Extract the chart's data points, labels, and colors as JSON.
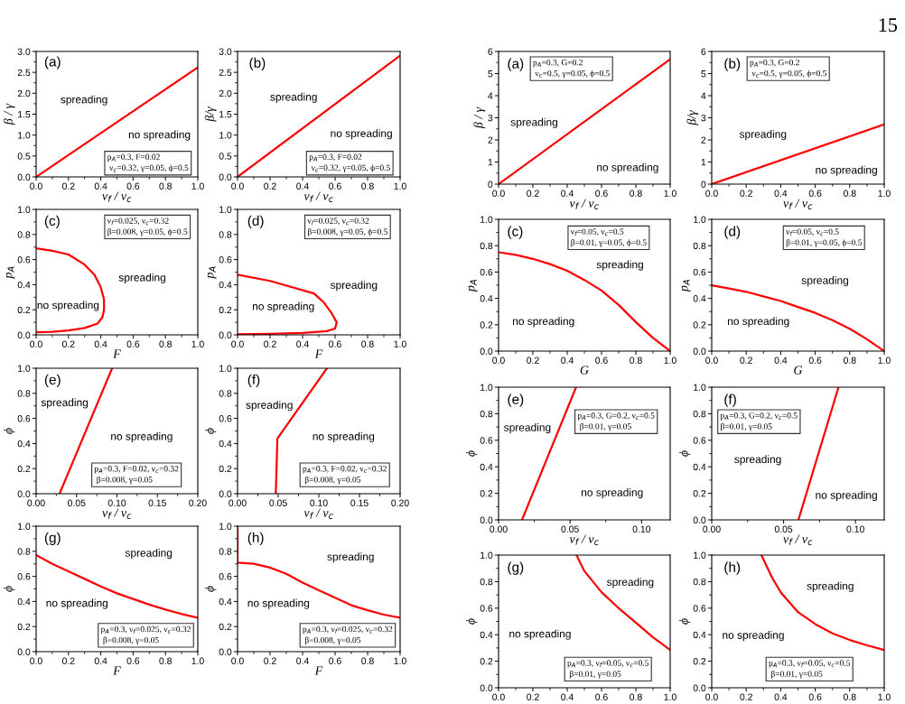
{
  "chart_data": [
    {
      "type": "line",
      "xlabel": "ν$_{f}$ / ν$_{c}$",
      "ylabel": "β / γ",
      "xlim": [
        0,
        1
      ],
      "ylim": [
        0,
        3
      ],
      "xticks": [
        {
          "value": 0,
          "label": "0.0"
        },
        0.2,
        0.4,
        0.6,
        0.8,
        {
          "value": 1,
          "label": "1.0"
        }
      ],
      "yticks": [
        {
          "value": 0,
          "label": "0.0"
        },
        0.5,
        {
          "value": 1,
          "label": "1.0"
        },
        1.5,
        {
          "value": 2,
          "label": "2.0"
        },
        2.5,
        {
          "value": 3,
          "label": "3.0"
        }
      ],
      "series": [
        {
          "color": "#ff0000",
          "x": [
            0,
            1
          ],
          "values": [
            0,
            2.62
          ]
        }
      ],
      "annotations": [
        "(a)",
        "spreading",
        "no spreading",
        "p$_{A}$=0.3, F=0.02\n ν$_{c}$=0.32, γ=0.05, ϕ=0.5"
      ]
    },
    {
      "type": "line",
      "xlabel": "ν$_{f}$ / ν$_{c}$",
      "ylabel": "β/γ",
      "xlim": [
        0,
        1
      ],
      "ylim": [
        0,
        3
      ],
      "xticks": [
        {
          "value": 0,
          "label": "0.0"
        },
        0.2,
        0.4,
        0.6,
        0.8,
        {
          "value": 1,
          "label": "1.0"
        }
      ],
      "yticks": [
        {
          "value": 0,
          "label": "0.0"
        },
        0.5,
        {
          "value": 1,
          "label": "1.0"
        },
        1.5,
        {
          "value": 2,
          "label": "2.0"
        },
        2.5,
        {
          "value": 3,
          "label": "3.0"
        }
      ],
      "series": [
        {
          "color": "#ff0000",
          "x": [
            0,
            1
          ],
          "values": [
            0,
            2.9
          ]
        }
      ],
      "annotations": [
        "(b)",
        "spreading",
        "no spreading",
        "p$_{A}$=0.3, F=0.02\n ν$_{c}$=0.32, γ=0.05, ϕ=0.5"
      ]
    },
    {
      "type": "line",
      "xlabel": "F",
      "ylabel": "p$_{A}$",
      "xlim": [
        0,
        1
      ],
      "ylim": [
        0,
        1
      ],
      "xticks": [
        {
          "value": 0,
          "label": "0.0"
        },
        0.2,
        0.4,
        0.6,
        0.8,
        {
          "value": 1,
          "label": "1.0"
        }
      ],
      "yticks": [
        {
          "value": 0,
          "label": "0.0"
        },
        0.2,
        0.4,
        0.6,
        0.8,
        {
          "value": 1,
          "label": "1.0"
        }
      ],
      "series": [
        {
          "color": "#ff0000",
          "x": [
            0,
            0.1,
            0.2,
            0.3,
            0.36,
            0.4,
            0.42,
            0.42,
            0.41,
            0.38,
            0.3,
            0.2,
            0.1,
            0
          ],
          "values": [
            0.69,
            0.67,
            0.64,
            0.56,
            0.48,
            0.38,
            0.28,
            0.2,
            0.14,
            0.09,
            0.055,
            0.035,
            0.025,
            0.02
          ]
        }
      ],
      "annotations": [
        "(c)",
        "spreading",
        "no spreading",
        "ν$_{f}$=0.025, ν$_{c}$=0.32\nβ=0.008, γ=0.05, ϕ=0.5"
      ]
    },
    {
      "type": "line",
      "xlabel": "F",
      "ylabel": "p$_{A}$",
      "xlim": [
        0,
        1
      ],
      "ylim": [
        0,
        1
      ],
      "xticks": [
        {
          "value": 0,
          "label": "0.0"
        },
        0.2,
        0.4,
        0.6,
        0.8,
        {
          "value": 1,
          "label": "1.0"
        }
      ],
      "yticks": [
        {
          "value": 0,
          "label": "0.0"
        },
        0.2,
        0.4,
        0.6,
        0.8,
        {
          "value": 1,
          "label": "1.0"
        }
      ],
      "series": [
        {
          "color": "#ff0000",
          "x": [
            0,
            0.2,
            0.47,
            0.53,
            0.58,
            0.61,
            0.6,
            0.55,
            0.4,
            0.2,
            0
          ],
          "values": [
            0.48,
            0.43,
            0.33,
            0.26,
            0.17,
            0.1,
            0.05,
            0.03,
            0.015,
            0.008,
            0.005
          ]
        }
      ],
      "annotations": [
        "(d)",
        "spreading",
        "no spreading",
        "ν$_{f}$=0.025, ν$_{c}$=0.32\nβ=0.008, γ=0.05, ϕ=0.5"
      ]
    },
    {
      "type": "line",
      "xlabel": "ν$_{f}$ / ν$_{c}$",
      "ylabel": "ϕ",
      "xlim": [
        0,
        0.2
      ],
      "ylim": [
        0,
        1
      ],
      "xticks": [
        {
          "value": 0,
          "label": "0.00"
        },
        0.05,
        {
          "value": 0.1,
          "label": "0.10"
        },
        0.15,
        {
          "value": 0.2,
          "label": "0.20"
        }
      ],
      "yticks": [
        {
          "value": 0,
          "label": "0.0"
        },
        0.2,
        0.4,
        0.6,
        0.8,
        {
          "value": 1,
          "label": "1.0"
        }
      ],
      "series": [
        {
          "color": "#ff0000",
          "x": [
            0.029,
            0.094
          ],
          "values": [
            0,
            1
          ]
        }
      ],
      "annotations": [
        "(e)",
        "spreading",
        "no spreading",
        "p$_{A}$=0.3, F=0.02, ν$_{c}$=0.32\n β=0.008, γ=0.05"
      ]
    },
    {
      "type": "line",
      "xlabel": "ν$_{f}$ / ν$_{c}$",
      "ylabel": "ϕ",
      "xlim": [
        0,
        0.2
      ],
      "ylim": [
        0,
        1
      ],
      "xticks": [
        {
          "value": 0,
          "label": "0.00"
        },
        0.05,
        {
          "value": 0.1,
          "label": "0.10"
        },
        0.15,
        {
          "value": 0.2,
          "label": "0.20"
        }
      ],
      "yticks": [
        {
          "value": 0,
          "label": "0.0"
        },
        0.2,
        0.4,
        0.6,
        0.8,
        {
          "value": 1,
          "label": "1.0"
        }
      ],
      "series": [
        {
          "color": "#ff0000",
          "x": [
            0.047,
            0.048,
            0.049,
            0.11
          ],
          "values": [
            0,
            0.2,
            0.44,
            1
          ]
        }
      ],
      "annotations": [
        "(f)",
        "spreading",
        "no spreading",
        "p$_{A}$=0.3, F=0.02, ν$_{c}$=0.32\n β=0.008, γ=0.05"
      ]
    },
    {
      "type": "line",
      "xlabel": "F",
      "ylabel": "ϕ",
      "xlim": [
        0,
        1
      ],
      "ylim": [
        0,
        1
      ],
      "xticks": [
        {
          "value": 0,
          "label": "0.0"
        },
        0.2,
        0.4,
        0.6,
        0.8,
        {
          "value": 1,
          "label": "1.0"
        }
      ],
      "yticks": [
        {
          "value": 0,
          "label": "0.0"
        },
        0.2,
        0.4,
        0.6,
        0.8,
        {
          "value": 1,
          "label": "1.0"
        }
      ],
      "series": [
        {
          "color": "#ff0000",
          "x": [
            0,
            0.1,
            0.2,
            0.3,
            0.4,
            0.5,
            0.6,
            0.7,
            0.8,
            0.9,
            1
          ],
          "values": [
            0.77,
            0.7,
            0.64,
            0.58,
            0.52,
            0.465,
            0.42,
            0.375,
            0.335,
            0.3,
            0.27
          ]
        }
      ],
      "annotations": [
        "(g)",
        "spreading",
        "no spreading",
        "p$_{A}$=0.3, ν$_{f}$=0.025, ν$_{c}$=0.32\n β=0.008, γ=0.05"
      ]
    },
    {
      "type": "line",
      "xlabel": "F",
      "ylabel": "ϕ",
      "xlim": [
        0,
        1
      ],
      "ylim": [
        0,
        1
      ],
      "xticks": [
        {
          "value": 0,
          "label": "0.0"
        },
        0.2,
        0.4,
        0.6,
        0.8,
        {
          "value": 1,
          "label": "1.0"
        }
      ],
      "yticks": [
        {
          "value": 0,
          "label": "0.0"
        },
        0.2,
        0.4,
        0.6,
        0.8,
        {
          "value": 1,
          "label": "1.0"
        }
      ],
      "series": [
        {
          "color": "#ff0000",
          "x": [
            0,
            0,
            0.1,
            0.2,
            0.3,
            0.4,
            0.5,
            0.6,
            0.7,
            0.8,
            0.9,
            1
          ],
          "values": [
            1,
            0.71,
            0.7,
            0.67,
            0.62,
            0.55,
            0.49,
            0.43,
            0.37,
            0.33,
            0.295,
            0.27
          ]
        }
      ],
      "annotations": [
        "(h)",
        "spreading",
        "no spreading",
        "p$_{A}$=0.3, ν$_{f}$=0.025, ν$_{c}$=0.32\n β=0.008, γ=0.05"
      ]
    },
    {
      "type": "line",
      "xlabel": "ν$_{f}$ / ν$_{c}$",
      "ylabel": "β / γ",
      "xlim": [
        0,
        1
      ],
      "ylim": [
        0,
        6
      ],
      "xticks": [
        {
          "value": 0,
          "label": "0.0"
        },
        0.2,
        0.4,
        0.6,
        0.8,
        {
          "value": 1,
          "label": "1.0"
        }
      ],
      "yticks": [
        0,
        1,
        2,
        3,
        4,
        5,
        6
      ],
      "series": [
        {
          "color": "#ff0000",
          "x": [
            0,
            1
          ],
          "values": [
            0,
            5.65
          ]
        }
      ],
      "annotations": [
        "(a)",
        "spreading",
        "no spreading",
        "p$_{A}$=0.3, G=0.2\n ν$_{c}$=0.5, γ=0.05, ϕ=0.5",
        "15"
      ]
    },
    {
      "type": "line",
      "xlabel": "ν$_{f}$ / ν$_{c}$",
      "ylabel": "β/γ",
      "xlim": [
        0,
        1
      ],
      "ylim": [
        0,
        6
      ],
      "xticks": [
        {
          "value": 0,
          "label": "0.0"
        },
        0.2,
        0.4,
        0.6,
        0.8,
        {
          "value": 1,
          "label": "1.0"
        }
      ],
      "yticks": [
        0,
        1,
        2,
        3,
        4,
        5,
        6
      ],
      "series": [
        {
          "color": "#ff0000",
          "x": [
            0,
            1
          ],
          "values": [
            0,
            2.7
          ]
        }
      ],
      "annotations": [
        "(b)",
        "spreading",
        "no spreading",
        "p$_{A}$=0.3, G=0.2\n ν$_{c}$=0.5, γ=0.05, ϕ=0.5"
      ]
    },
    {
      "type": "line",
      "xlabel": "G",
      "ylabel": "p$_{A}$",
      "xlim": [
        0,
        1
      ],
      "ylim": [
        0,
        1
      ],
      "xticks": [
        {
          "value": 0,
          "label": "0.0"
        },
        0.2,
        0.4,
        0.6,
        0.8,
        {
          "value": 1,
          "label": "1.0"
        }
      ],
      "yticks": [
        {
          "value": 0,
          "label": "0.0"
        },
        0.2,
        0.4,
        0.6,
        0.8,
        {
          "value": 1,
          "label": "1.0"
        }
      ],
      "series": [
        {
          "color": "#ff0000",
          "x": [
            0,
            0.1,
            0.2,
            0.3,
            0.4,
            0.5,
            0.6,
            0.7,
            0.8,
            0.9,
            1
          ],
          "values": [
            0.75,
            0.73,
            0.7,
            0.66,
            0.61,
            0.54,
            0.46,
            0.35,
            0.22,
            0.1,
            0
          ]
        }
      ],
      "annotations": [
        "(c)",
        "spreading",
        "no spreading",
        "ν$_{f}$=0.05, ν$_{c}$=0.5\nβ=0.01, γ=0.05, ϕ=0.5"
      ]
    },
    {
      "type": "line",
      "xlabel": "G",
      "ylabel": "p$_{A}$",
      "xlim": [
        0,
        1
      ],
      "ylim": [
        0,
        1
      ],
      "xticks": [
        {
          "value": 0,
          "label": "0.0"
        },
        0.2,
        0.4,
        0.6,
        0.8,
        {
          "value": 1,
          "label": "1.0"
        }
      ],
      "yticks": [
        {
          "value": 0,
          "label": "0.0"
        },
        0.2,
        0.4,
        0.6,
        0.8,
        {
          "value": 1,
          "label": "1.0"
        }
      ],
      "series": [
        {
          "color": "#ff0000",
          "x": [
            0,
            0.1,
            0.2,
            0.3,
            0.4,
            0.5,
            0.6,
            0.7,
            0.8,
            0.9,
            1
          ],
          "values": [
            0.5,
            0.475,
            0.45,
            0.415,
            0.38,
            0.335,
            0.29,
            0.235,
            0.17,
            0.09,
            0
          ]
        }
      ],
      "annotations": [
        "(d)",
        "spreading",
        "no spreading",
        "ν$_{f}$=0.05, ν$_{c}$=0.5\nβ=0.01, γ=0.05, ϕ=0.5"
      ]
    },
    {
      "type": "line",
      "xlabel": "ν$_{f}$ / ν$_{c}$",
      "ylabel": "ϕ",
      "xlim": [
        0,
        0.12
      ],
      "ylim": [
        0,
        1
      ],
      "xticks": [
        {
          "value": 0,
          "label": "0.00"
        },
        0.05,
        {
          "value": 0.1,
          "label": "0.10"
        }
      ],
      "yticks": [
        {
          "value": 0,
          "label": "0.0"
        },
        0.2,
        0.4,
        0.6,
        0.8,
        {
          "value": 1,
          "label": "1.0"
        }
      ],
      "series": [
        {
          "color": "#ff0000",
          "x": [
            0.0164,
            0.0542
          ],
          "values": [
            0,
            1
          ]
        }
      ],
      "annotations": [
        "(e)",
        "spreading",
        "no spreading",
        "p$_{A}$=0.3, G=0.2, ν$_{c}$=0.5\n β=0.01, γ=0.05"
      ]
    },
    {
      "type": "line",
      "xlabel": "ν$_{f}$ / ν$_{c}$",
      "ylabel": "ϕ",
      "xlim": [
        0,
        0.12
      ],
      "ylim": [
        0,
        1
      ],
      "xticks": [
        {
          "value": 0,
          "label": "0.00"
        },
        0.05,
        {
          "value": 0.1,
          "label": "0.10"
        }
      ],
      "yticks": [
        {
          "value": 0,
          "label": "0.0"
        },
        0.2,
        0.4,
        0.6,
        0.8,
        {
          "value": 1,
          "label": "1.0"
        }
      ],
      "series": [
        {
          "color": "#ff0000",
          "x": [
            0.0603,
            0.0882
          ],
          "values": [
            0,
            1
          ]
        }
      ],
      "annotations": [
        "(f)",
        "spreading",
        "no spreading",
        "p$_{A}$=0.3, G=0.2, ν$_{c}$=0.5\nβ=0.01, γ=0.05"
      ]
    },
    {
      "type": "line",
      "ylabel": "ϕ",
      "xlim": [
        0,
        1
      ],
      "ylim": [
        0,
        1
      ],
      "xticks": [
        {
          "value": 0,
          "label": "0.0"
        },
        0.2,
        0.4,
        0.6,
        0.8,
        {
          "value": 1,
          "label": "1.0"
        }
      ],
      "yticks": [
        {
          "value": 0,
          "label": "0.0"
        },
        0.2,
        0.4,
        0.6,
        0.8,
        {
          "value": 1,
          "label": "1.0"
        }
      ],
      "series": [
        {
          "color": "#ff0000",
          "x": [
            0.454,
            0.5,
            0.6,
            0.7,
            0.8,
            0.9,
            1
          ],
          "values": [
            1,
            0.88,
            0.72,
            0.6,
            0.49,
            0.38,
            0.285
          ]
        }
      ],
      "annotations": [
        "(g)",
        "spreading",
        "no spreading",
        "p$_{A}$=0.3, ν$_{f}$=0.05, ν$_{c}$=0.5\n β=0.01, γ=0.05"
      ]
    },
    {
      "type": "line",
      "ylabel": "ϕ",
      "xlim": [
        0,
        1
      ],
      "ylim": [
        0,
        1
      ],
      "xticks": [
        {
          "value": 0,
          "label": "0.0"
        },
        0.2,
        0.4,
        0.6,
        0.8,
        {
          "value": 1,
          "label": "1.0"
        }
      ],
      "yticks": [
        {
          "value": 0,
          "label": "0.0"
        },
        0.2,
        0.4,
        0.6,
        0.8,
        {
          "value": 1,
          "label": "1.0"
        }
      ],
      "series": [
        {
          "color": "#ff0000",
          "x": [
            0.288,
            0.35,
            0.4,
            0.5,
            0.6,
            0.7,
            0.8,
            0.9,
            1
          ],
          "values": [
            1,
            0.83,
            0.72,
            0.57,
            0.48,
            0.41,
            0.36,
            0.32,
            0.285
          ]
        }
      ],
      "annotations": [
        "(h)",
        "spreading",
        "no spreading",
        "p$_{A}$=0.3, ν$_{f}$=0.05, ν$_{c}$=0.5\n β=0.01, γ=0.05"
      ]
    }
  ]
}
